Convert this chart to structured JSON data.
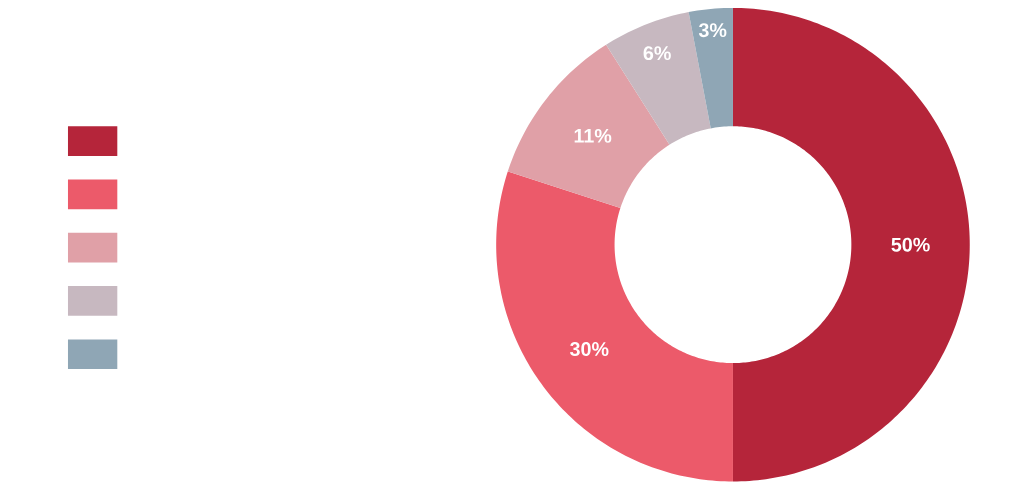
{
  "chart_data": {
    "type": "donut",
    "categories": [
      null,
      null,
      null,
      null,
      null
    ],
    "values": [
      50,
      30,
      11,
      6,
      3
    ],
    "colors": [
      "#b5253a",
      "#ec5a6a",
      "#e0a0a7",
      "#c7b8c0",
      "#8fa6b5"
    ],
    "value_labels": [
      "50%",
      "30%",
      "11%",
      "6%",
      "3%"
    ]
  }
}
